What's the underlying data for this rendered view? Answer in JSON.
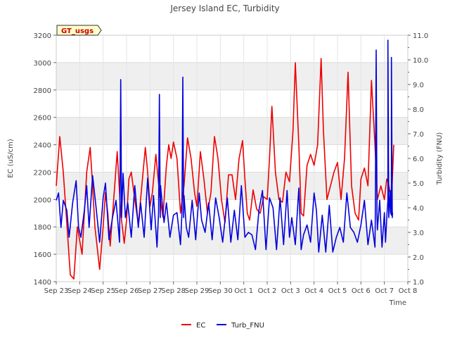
{
  "chart_data": {
    "type": "line",
    "title": "Jersey Island EC, Turbidity",
    "xlabel": "Time",
    "ylabel_left": "EC (uS/cm)",
    "ylabel_right": "Turbidity (FNU)",
    "badge": "GT_usgs",
    "x_ticks": [
      "Sep 23",
      "Sep 24",
      "Sep 25",
      "Sep 26",
      "Sep 27",
      "Sep 28",
      "Sep 29",
      "Sep 30",
      "Oct 1",
      "Oct 2",
      "Oct 3",
      "Oct 4",
      "Oct 5",
      "Oct 6",
      "Oct 7",
      "Oct 8"
    ],
    "xlim_days": [
      0,
      15
    ],
    "ylim_left": [
      1400,
      3200
    ],
    "ylim_right": [
      1.0,
      11.0
    ],
    "left_ticks": [
      "1400",
      "1600",
      "1800",
      "2000",
      "2200",
      "2400",
      "2600",
      "2800",
      "3000",
      "3200"
    ],
    "right_ticks": [
      "1.0",
      "2.0",
      "3.0",
      "4.0",
      "5.0",
      "6.0",
      "7.0",
      "8.0",
      "9.0",
      "10.0",
      "11.0"
    ],
    "grid": true,
    "legend_position": "bottom-center",
    "colors": {
      "EC": "#ee0000",
      "Turb_FNU": "#0000dd",
      "band": "#efefef",
      "badge_bg": "#ffffcc"
    },
    "series": [
      {
        "name": "EC",
        "axis": "left",
        "x_days": [
          0.0,
          0.15,
          0.3,
          0.5,
          0.6,
          0.75,
          0.9,
          1.1,
          1.3,
          1.45,
          1.55,
          1.65,
          1.85,
          2.0,
          2.1,
          2.2,
          2.3,
          2.45,
          2.6,
          2.75,
          2.9,
          3.0,
          3.1,
          3.2,
          3.35,
          3.5,
          3.65,
          3.8,
          3.9,
          4.0,
          4.1,
          4.25,
          4.4,
          4.55,
          4.7,
          4.8,
          4.9,
          5.0,
          5.15,
          5.3,
          5.45,
          5.6,
          5.75,
          5.9,
          6.0,
          6.15,
          6.3,
          6.45,
          6.6,
          6.75,
          6.9,
          7.05,
          7.2,
          7.35,
          7.5,
          7.65,
          7.8,
          7.95,
          8.05,
          8.15,
          8.25,
          8.4,
          8.55,
          8.7,
          8.85,
          9.0,
          9.1,
          9.2,
          9.35,
          9.5,
          9.65,
          9.8,
          9.95,
          10.1,
          10.2,
          10.35,
          10.45,
          10.55,
          10.7,
          10.85,
          11.0,
          11.15,
          11.3,
          11.4,
          11.55,
          11.7,
          11.85,
          12.0,
          12.15,
          12.3,
          12.45,
          12.6,
          12.75,
          12.9,
          13.0,
          13.15,
          13.3,
          13.45,
          13.6,
          13.7,
          13.85,
          14.0,
          14.1,
          14.2,
          14.3,
          14.4
        ],
        "values": [
          2100,
          2460,
          2200,
          1700,
          1450,
          1420,
          1800,
          1600,
          2200,
          2380,
          2100,
          1800,
          1490,
          1800,
          2050,
          1900,
          1660,
          2000,
          2350,
          1900,
          1680,
          1850,
          2150,
          2200,
          2000,
          1820,
          2100,
          2380,
          2200,
          1950,
          2050,
          2330,
          2050,
          1870,
          2250,
          2400,
          2300,
          2420,
          2300,
          1900,
          2100,
          2450,
          2300,
          2050,
          1950,
          2350,
          2150,
          1900,
          2050,
          2460,
          2300,
          2000,
          1830,
          2180,
          2180,
          2000,
          2300,
          2430,
          2150,
          1900,
          1850,
          2070,
          1930,
          1900,
          2020,
          2000,
          2300,
          2680,
          2200,
          2000,
          1980,
          2200,
          2130,
          2500,
          3000,
          2400,
          1900,
          1880,
          2250,
          2330,
          2250,
          2400,
          3030,
          2500,
          2000,
          2100,
          2200,
          2270,
          2000,
          2300,
          2930,
          2100,
          1900,
          1850,
          2150,
          2230,
          2100,
          2870,
          2400,
          2000,
          2100,
          2000,
          2150,
          2100,
          1980,
          2400
        ]
      },
      {
        "name": "Turb_FNU",
        "axis": "right",
        "x_days": [
          0.0,
          0.1,
          0.2,
          0.3,
          0.45,
          0.55,
          0.7,
          0.85,
          0.95,
          1.05,
          1.2,
          1.3,
          1.4,
          1.55,
          1.7,
          1.85,
          2.0,
          2.1,
          2.25,
          2.4,
          2.55,
          2.7,
          2.85,
          2.95,
          3.05,
          3.2,
          3.35,
          3.5,
          3.6,
          3.75,
          3.9,
          4.05,
          4.15,
          4.3,
          4.45,
          4.6,
          4.7,
          4.85,
          5.0,
          5.15,
          5.3,
          5.45,
          5.55,
          5.65,
          5.8,
          5.95,
          6.1,
          6.2,
          6.35,
          6.5,
          6.65,
          6.8,
          6.95,
          7.1,
          7.3,
          7.45,
          7.6,
          7.75,
          7.9,
          8.05,
          8.2,
          8.35,
          8.5,
          8.65,
          8.8,
          8.95,
          9.1,
          9.25,
          9.4,
          9.55,
          9.7,
          9.85,
          9.95,
          10.05,
          10.2,
          10.35,
          10.45,
          10.55,
          10.7,
          10.85,
          11.0,
          11.1,
          11.2,
          11.35,
          11.5,
          11.65,
          11.8,
          11.95,
          12.1,
          12.25,
          12.4,
          12.55,
          12.7,
          12.85,
          13.0,
          13.15,
          13.3,
          13.45,
          13.6,
          13.7,
          13.8,
          13.9,
          14.0,
          14.05,
          14.15,
          14.25,
          14.3,
          14.35
        ],
        "values": [
          4.3,
          4.6,
          3.2,
          4.3,
          3.9,
          2.8,
          4.2,
          5.1,
          3.2,
          2.8,
          3.9,
          4.9,
          3.2,
          5.3,
          4.0,
          2.6,
          4.4,
          5.0,
          2.7,
          3.6,
          4.3,
          2.6,
          5.4,
          3.6,
          4.2,
          2.8,
          4.9,
          3.2,
          4.2,
          2.8,
          5.2,
          3.1,
          4.5,
          2.4,
          4.9,
          3.4,
          4.2,
          2.8,
          3.7,
          3.8,
          2.5,
          4.5,
          3.2,
          2.8,
          4.3,
          2.7,
          4.6,
          3.5,
          3.0,
          4.2,
          2.7,
          4.4,
          3.6,
          2.6,
          4.4,
          2.6,
          3.9,
          2.7,
          4.9,
          2.8,
          3.0,
          2.9,
          2.3,
          3.9,
          4.7,
          2.3,
          4.4,
          4.0,
          2.3,
          4.4,
          2.5,
          4.7,
          2.8,
          3.6,
          2.5,
          4.8,
          2.3,
          2.9,
          3.3,
          2.6,
          4.6,
          3.9,
          2.2,
          3.7,
          2.2,
          4.1,
          2.2,
          2.8,
          3.2,
          2.6,
          4.6,
          3.2,
          3.0,
          2.6,
          3.3,
          4.3,
          2.5,
          3.5,
          2.4,
          3.1,
          4.3,
          2.4,
          3.8,
          2.6,
          4.3,
          4.7,
          3.7,
          3.8
        ]
      }
    ],
    "spikes": [
      {
        "name": "Turb_FNU",
        "x_days": [
          2.75,
          4.4,
          5.4,
          13.65,
          14.15,
          14.3
        ],
        "values": [
          9.2,
          8.6,
          9.3,
          10.4,
          10.8,
          10.1
        ]
      }
    ]
  }
}
